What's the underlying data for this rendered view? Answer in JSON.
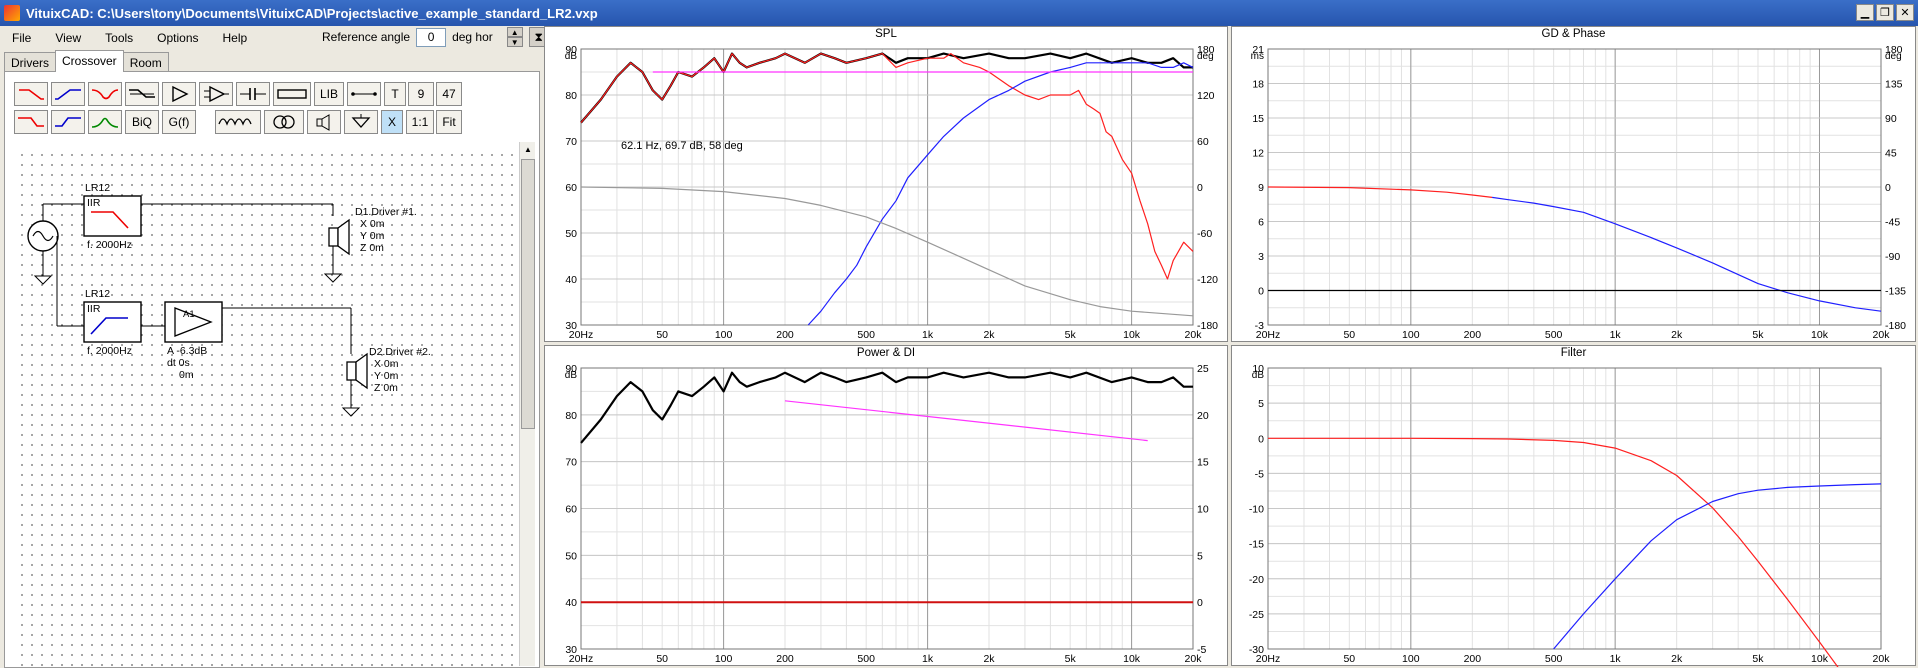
{
  "window": {
    "title": "VituixCAD: C:\\Users\\tony\\Documents\\VituixCAD\\Projects\\active_example_standard_LR2.vxp",
    "minimize": "▁",
    "maximize": "❐",
    "close": "✕"
  },
  "menu": [
    "File",
    "View",
    "Tools",
    "Options",
    "Help"
  ],
  "reference_angle": {
    "label": "Reference angle",
    "value": "0",
    "unit": "deg hor"
  },
  "tabs": [
    {
      "label": "Drivers",
      "active": false
    },
    {
      "label": "Crossover",
      "active": true
    },
    {
      "label": "Room",
      "active": false
    }
  ],
  "toolbar": {
    "lib": "LIB",
    "t": "T",
    "nine": "9",
    "fortyseven": "47",
    "biq": "BiQ",
    "gf": "G(f)",
    "x": "X",
    "one_to_one": "1:1",
    "fit": "Fit"
  },
  "schematic": {
    "block1": {
      "name": "LR12",
      "type": "IIR",
      "freq": "f. 2000Hz"
    },
    "block2": {
      "name": "LR12",
      "type": "IIR",
      "freq": "f. 2000Hz"
    },
    "amp": {
      "name": "A1",
      "gain": "A -6.3dB",
      "delay": "dt 0s",
      "dist": "0m"
    },
    "driver1": {
      "name": "D1.Driver #1.",
      "x": "X 0m",
      "y": "Y 0m",
      "z": "Z 0m"
    },
    "driver2": {
      "name": "D2.Driver #2.",
      "x": "X 0m",
      "y": "Y 0m",
      "z": "Z 0m"
    }
  },
  "colors": {
    "total": "#000000",
    "driver1": "#ff2020",
    "driver2": "#2020ff",
    "phase": "#999999",
    "target": "#ff33ff",
    "di": "#d01010"
  },
  "freq_ticks": [
    "20Hz",
    "50",
    "100",
    "200",
    "500",
    "1k",
    "2k",
    "5k",
    "10k",
    "20k"
  ],
  "chart_data": [
    {
      "type": "line",
      "title": "SPL",
      "ylabel": "dB",
      "y2label": "deg",
      "ylim": [
        30,
        90
      ],
      "y2lim": [
        -180,
        180
      ],
      "yticks": [
        "90",
        "80",
        "70",
        "60",
        "50",
        "40",
        "30"
      ],
      "y2ticks": [
        "180",
        "120",
        "60",
        "0",
        "-60",
        "-120",
        "-180"
      ],
      "annotation": "62.1 Hz, 69.7 dB, 58 deg",
      "series": [
        {
          "color": "#000000",
          "x": [
            20,
            25,
            30,
            35,
            40,
            45,
            50,
            55,
            60,
            70,
            80,
            90,
            100,
            110,
            120,
            130,
            150,
            180,
            200,
            250,
            300,
            350,
            400,
            500,
            600,
            700,
            800,
            1000,
            1200,
            1500,
            2000,
            2500,
            3000,
            4000,
            5000,
            6000,
            8000,
            10000,
            12000,
            14000,
            16000,
            18000,
            20000
          ],
          "y": [
            74,
            79,
            84,
            87,
            85,
            81,
            79,
            82,
            85,
            84,
            86,
            88,
            85,
            89,
            87,
            86,
            87,
            88,
            89,
            87,
            89,
            88,
            87,
            88,
            89,
            87,
            88,
            88,
            89,
            88,
            89,
            88,
            88,
            89,
            88,
            89,
            87,
            88,
            87,
            87,
            88,
            86,
            86
          ]
        },
        {
          "color": "#ff2020",
          "x": [
            20,
            25,
            30,
            35,
            40,
            45,
            50,
            55,
            60,
            70,
            80,
            90,
            100,
            110,
            120,
            130,
            150,
            180,
            200,
            250,
            300,
            350,
            400,
            500,
            600,
            700,
            800,
            1000,
            1200,
            1300,
            1500,
            1800,
            2000,
            2500,
            3000,
            3500,
            4000,
            5000,
            5500,
            6000,
            6500,
            7000,
            7500,
            8000,
            9000,
            10000,
            11000,
            12000,
            13000,
            14000,
            15000,
            16000,
            18000,
            20000
          ],
          "y": [
            74,
            79,
            84,
            87,
            85,
            81,
            79,
            82,
            85,
            84,
            86,
            88,
            85,
            89,
            87,
            86,
            87,
            88,
            89,
            87,
            89,
            88,
            87,
            88,
            89,
            86,
            87,
            88,
            88,
            89,
            87,
            86,
            85,
            82,
            80,
            79,
            80,
            80,
            81,
            78,
            77,
            76,
            72,
            71,
            66,
            63,
            57,
            52,
            46,
            43,
            40,
            44,
            48,
            46
          ]
        },
        {
          "color": "#2020ff",
          "x": [
            260,
            300,
            350,
            400,
            450,
            500,
            600,
            700,
            800,
            1000,
            1200,
            1500,
            2000,
            2500,
            3000,
            4000,
            5000,
            6000,
            7000,
            8000,
            10000,
            12000,
            14000,
            16000,
            18000,
            20000
          ],
          "y": [
            30,
            33,
            37,
            40,
            43,
            47,
            53,
            57,
            62,
            67,
            71,
            75,
            79,
            81,
            83,
            85,
            86,
            87,
            87,
            87,
            87,
            87,
            86,
            86,
            87,
            86
          ]
        },
        {
          "color": "#999999",
          "x": [
            20,
            50,
            100,
            200,
            300,
            500,
            700,
            1000,
            1500,
            2000,
            3000,
            5000,
            7000,
            10000,
            20000
          ],
          "y": [
            60,
            59.7,
            59,
            57.5,
            56,
            53.5,
            51,
            48,
            44.5,
            42,
            38.5,
            35.5,
            34,
            33,
            32
          ]
        },
        {
          "color": "#ff33ff",
          "x": [
            45,
            20000
          ],
          "y": [
            85,
            85
          ]
        }
      ]
    },
    {
      "type": "line",
      "title": "GD & Phase",
      "ylabel": "ms",
      "y2label": "deg",
      "ylim": [
        -3,
        21
      ],
      "y2lim": [
        -180,
        180
      ],
      "yticks": [
        "21",
        "18",
        "15",
        "12",
        "9",
        "6",
        "3",
        "0",
        "-3"
      ],
      "y2ticks": [
        "180",
        "135",
        "90",
        "45",
        "0",
        "-45",
        "-90",
        "-135",
        "-180"
      ],
      "series": [
        {
          "color": "#ff2020",
          "x": [
            20,
            50,
            100,
            150,
            200,
            250
          ],
          "y": [
            9,
            8.95,
            8.75,
            8.55,
            8.3,
            8.1
          ]
        },
        {
          "color": "#2020ff",
          "x": [
            250,
            300,
            400,
            500,
            700,
            1000,
            1500,
            2000,
            3000,
            5000,
            7000,
            10000,
            15000,
            20000
          ],
          "y": [
            8.1,
            7.9,
            7.6,
            7.3,
            6.8,
            5.8,
            4.6,
            3.7,
            2.4,
            0.6,
            -0.2,
            -0.9,
            -1.5,
            -1.8
          ]
        },
        {
          "color": "#000000",
          "x": [
            20,
            20000
          ],
          "y": [
            0,
            0
          ]
        }
      ]
    },
    {
      "type": "line",
      "title": "Power & DI",
      "ylabel": "dB",
      "ylim": [
        30,
        90
      ],
      "y2lim": [
        -5,
        25
      ],
      "yticks": [
        "90",
        "80",
        "70",
        "60",
        "50",
        "40",
        "30"
      ],
      "y2ticks": [
        "25",
        "20",
        "15",
        "10",
        "5",
        "0",
        "-5"
      ],
      "series": [
        {
          "color": "#000000",
          "x": [
            20,
            25,
            30,
            35,
            40,
            45,
            50,
            55,
            60,
            70,
            80,
            90,
            100,
            110,
            120,
            130,
            150,
            180,
            200,
            250,
            300,
            350,
            400,
            500,
            600,
            700,
            800,
            1000,
            1200,
            1500,
            2000,
            2500,
            3000,
            4000,
            5000,
            6000,
            8000,
            10000,
            12000,
            14000,
            16000,
            18000,
            20000
          ],
          "y": [
            74,
            79,
            84,
            87,
            85,
            81,
            79,
            82,
            85,
            84,
            86,
            88,
            85,
            89,
            87,
            86,
            87,
            88,
            89,
            87,
            89,
            88,
            87,
            88,
            89,
            87,
            88,
            88,
            89,
            88,
            89,
            88,
            88,
            89,
            88,
            89,
            87,
            88,
            87,
            87,
            88,
            86,
            86
          ]
        },
        {
          "color": "#ff33ff",
          "x": [
            200,
            12000
          ],
          "y": [
            83,
            74.5
          ]
        },
        {
          "color": "#d01010",
          "x": [
            20,
            20000
          ],
          "y": [
            40,
            40
          ]
        }
      ]
    },
    {
      "type": "line",
      "title": "Filter",
      "ylabel": "dB",
      "ylim": [
        -30,
        10
      ],
      "yticks": [
        "10",
        "5",
        "0",
        "-5",
        "-10",
        "-15",
        "-20",
        "-25",
        "-30"
      ],
      "series": [
        {
          "color": "#ff2020",
          "x": [
            20,
            100,
            200,
            300,
            500,
            700,
            1000,
            1500,
            2000,
            3000,
            4000,
            5000,
            7000,
            10000,
            15000
          ],
          "y": [
            0,
            0,
            -0.05,
            -0.1,
            -0.3,
            -0.6,
            -1.4,
            -3.2,
            -5.3,
            -9.9,
            -14,
            -17.5,
            -23,
            -29,
            -36
          ]
        },
        {
          "color": "#2020ff",
          "x": [
            500,
            700,
            1000,
            1500,
            2000,
            3000,
            4000,
            5000,
            7000,
            10000,
            15000,
            20000
          ],
          "y": [
            -30,
            -25,
            -20,
            -14.6,
            -11.6,
            -9,
            -7.9,
            -7.4,
            -7,
            -6.8,
            -6.6,
            -6.5
          ]
        }
      ]
    }
  ]
}
